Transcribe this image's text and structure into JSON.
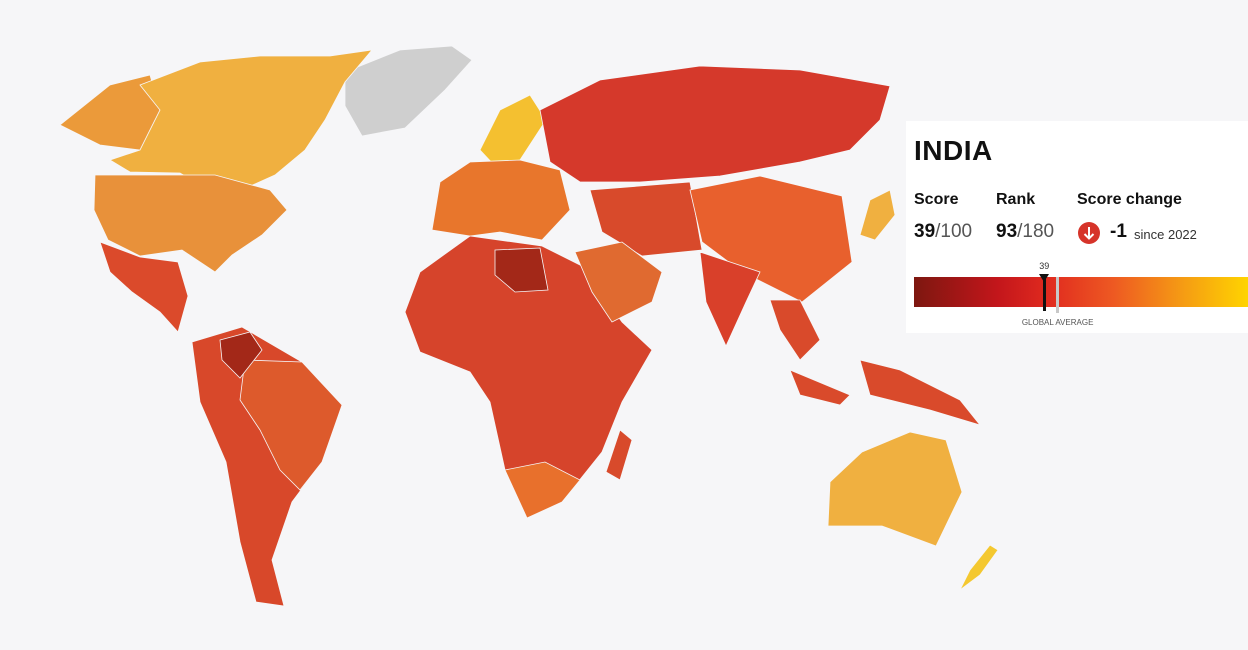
{
  "card": {
    "country": "INDIA",
    "score": {
      "label": "Score",
      "value": 39,
      "out_of": {
        "value": 100,
        "label": "/100"
      }
    },
    "rank": {
      "label": "Rank",
      "value": 93,
      "out_of": {
        "value": 180,
        "label": "/180"
      }
    },
    "score_change": {
      "label": "Score change",
      "value": -1,
      "since": "since 2022"
    },
    "global_average": {
      "label": "GLOBAL AVERAGE",
      "value": 43
    }
  }
}
